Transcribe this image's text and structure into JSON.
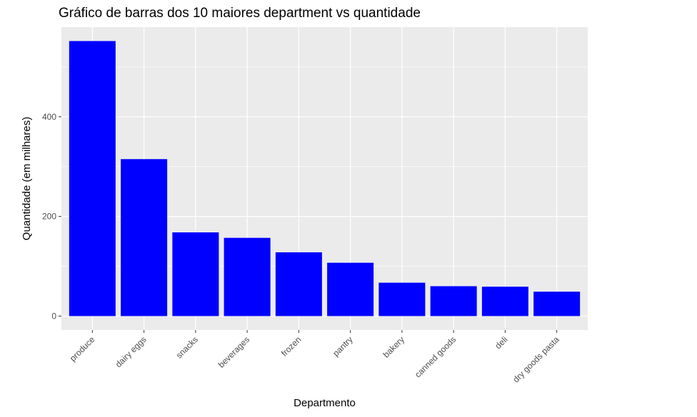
{
  "chart_data": {
    "type": "bar",
    "title": "Gráfico de barras dos 10 maiores department vs quantidade",
    "xlabel": "Departmento",
    "ylabel": "Quantidade (em milhares)",
    "categories": [
      "produce",
      "dairy eggs",
      "snacks",
      "beverages",
      "frozen",
      "pantry",
      "bakery",
      "canned goods",
      "deli",
      "dry goods pasta"
    ],
    "values": [
      552,
      315,
      168,
      157,
      128,
      107,
      67,
      60,
      59,
      49
    ],
    "ylim": [
      -28,
      580
    ],
    "yticks": [
      0,
      200,
      400
    ],
    "ytick_labels": [
      "0",
      "200",
      "400"
    ],
    "grid": true,
    "bar_color": "#0000ff",
    "panel_background": "#ebebeb",
    "grid_color": "#ffffff"
  }
}
